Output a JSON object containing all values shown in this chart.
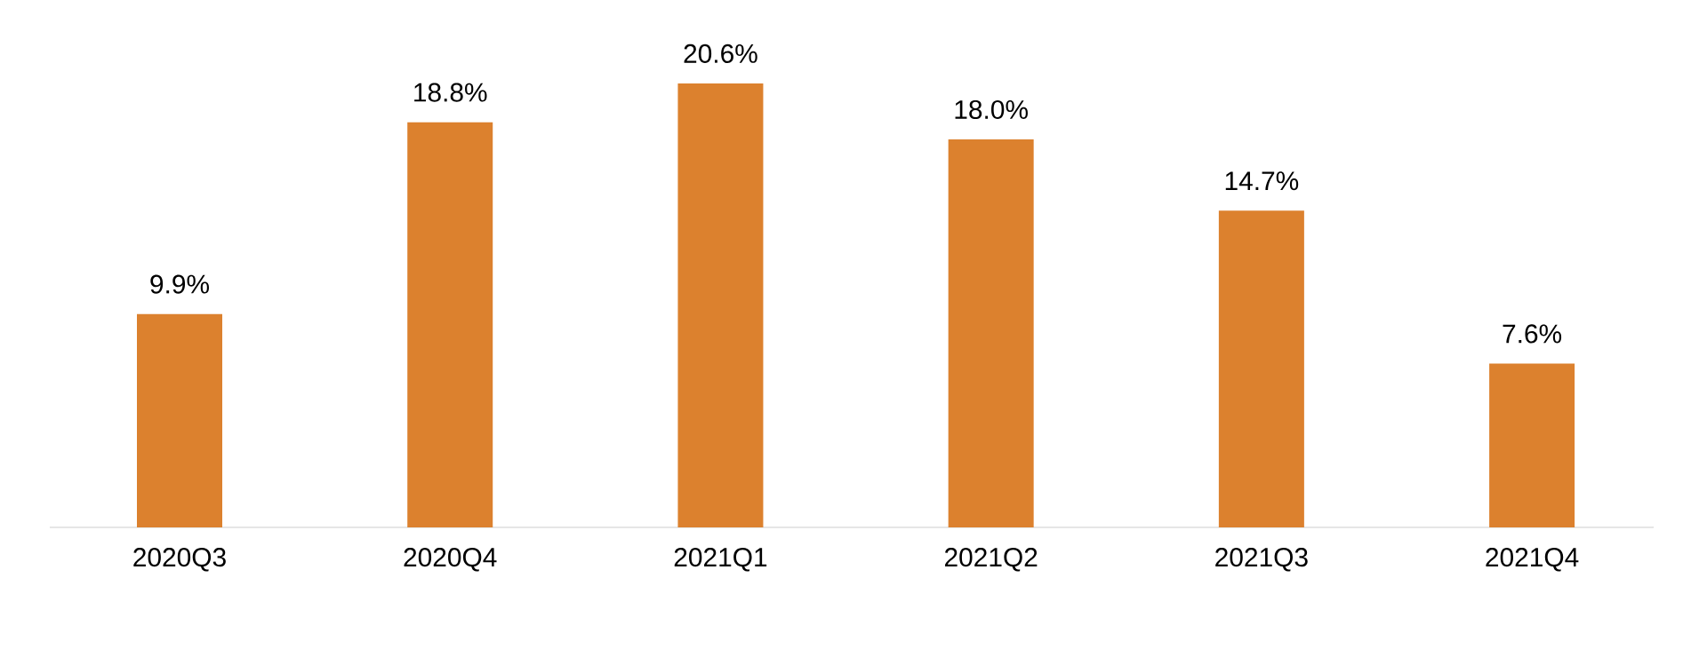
{
  "chart_data": {
    "type": "bar",
    "categories": [
      "2020Q3",
      "2020Q4",
      "2021Q1",
      "2021Q2",
      "2021Q3",
      "2021Q4"
    ],
    "values": [
      9.9,
      18.8,
      20.6,
      18.0,
      14.7,
      7.6
    ],
    "color": "#dc812e",
    "value_labels": [
      "9.9%",
      "18.8%",
      "20.6%",
      "18.0%",
      "14.7%",
      "7.6%"
    ]
  }
}
